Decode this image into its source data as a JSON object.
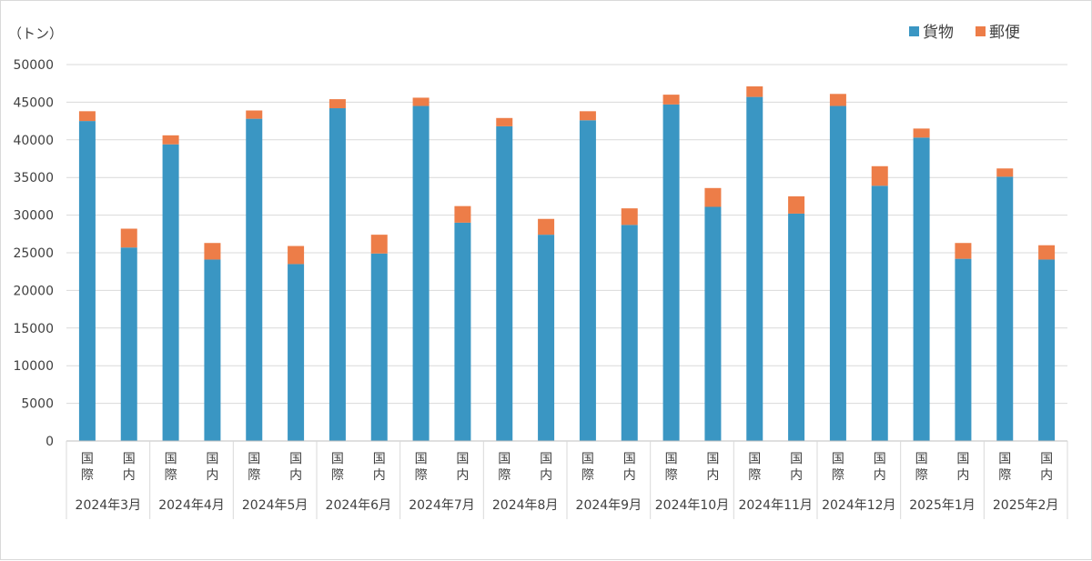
{
  "chart_data": {
    "type": "bar",
    "stacked": true,
    "unit_label": "（トン）",
    "ylim": [
      0,
      50000
    ],
    "yticks": [
      0,
      5000,
      10000,
      15000,
      20000,
      25000,
      30000,
      35000,
      40000,
      45000,
      50000
    ],
    "grid": true,
    "legend_position": "top-right",
    "months": [
      "2024年3月",
      "2024年4月",
      "2024年5月",
      "2024年6月",
      "2024年7月",
      "2024年8月",
      "2024年9月",
      "2024年10月",
      "2024年11月",
      "2024年12月",
      "2025年1月",
      "2025年2月"
    ],
    "subcategories": [
      "国際",
      "国内"
    ],
    "series": [
      {
        "name": "貨物",
        "color": "#3a96c3",
        "values": [
          42500,
          25700,
          39400,
          24100,
          42800,
          23500,
          44200,
          24900,
          44500,
          29000,
          41800,
          27400,
          42600,
          28700,
          44700,
          31100,
          45700,
          30200,
          44500,
          33900,
          40300,
          24200,
          35100,
          24100
        ]
      },
      {
        "name": "郵便",
        "color": "#ed7d48",
        "values": [
          1300,
          2500,
          1200,
          2200,
          1100,
          2400,
          1200,
          2500,
          1100,
          2200,
          1100,
          2100,
          1200,
          2200,
          1300,
          2500,
          1400,
          2300,
          1600,
          2600,
          1200,
          2100,
          1100,
          1900
        ]
      }
    ]
  }
}
